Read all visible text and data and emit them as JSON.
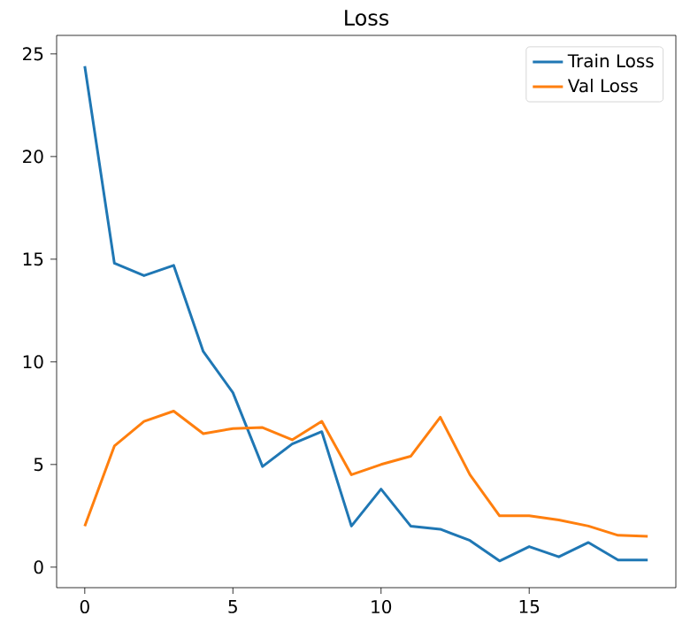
{
  "chart_data": {
    "type": "line",
    "title": "Loss",
    "x": [
      0,
      1,
      2,
      3,
      4,
      5,
      6,
      7,
      8,
      9,
      10,
      11,
      12,
      13,
      14,
      15,
      16,
      17,
      18,
      19
    ],
    "series": [
      {
        "name": "Train Loss",
        "color": "#1f77b4",
        "values": [
          24.4,
          14.8,
          14.2,
          14.7,
          10.5,
          8.5,
          4.9,
          6.0,
          6.6,
          2.0,
          3.8,
          2.0,
          1.85,
          1.3,
          0.3,
          1.0,
          0.5,
          1.2,
          0.35,
          0.35
        ]
      },
      {
        "name": "Val Loss",
        "color": "#ff7f0e",
        "values": [
          2.0,
          5.9,
          7.1,
          7.6,
          6.5,
          6.75,
          6.8,
          6.2,
          7.1,
          4.5,
          5.0,
          5.4,
          7.3,
          4.5,
          2.5,
          2.5,
          2.3,
          2.0,
          1.55,
          1.5
        ]
      }
    ],
    "xlim": [
      -0.95,
      19.95
    ],
    "ylim": [
      -1.0,
      25.9
    ],
    "xticks": [
      0,
      5,
      10,
      15
    ],
    "yticks": [
      0,
      5,
      10,
      15,
      20,
      25
    ],
    "legend": "top right",
    "grid": false,
    "marker": "none",
    "line_style": "solid"
  }
}
